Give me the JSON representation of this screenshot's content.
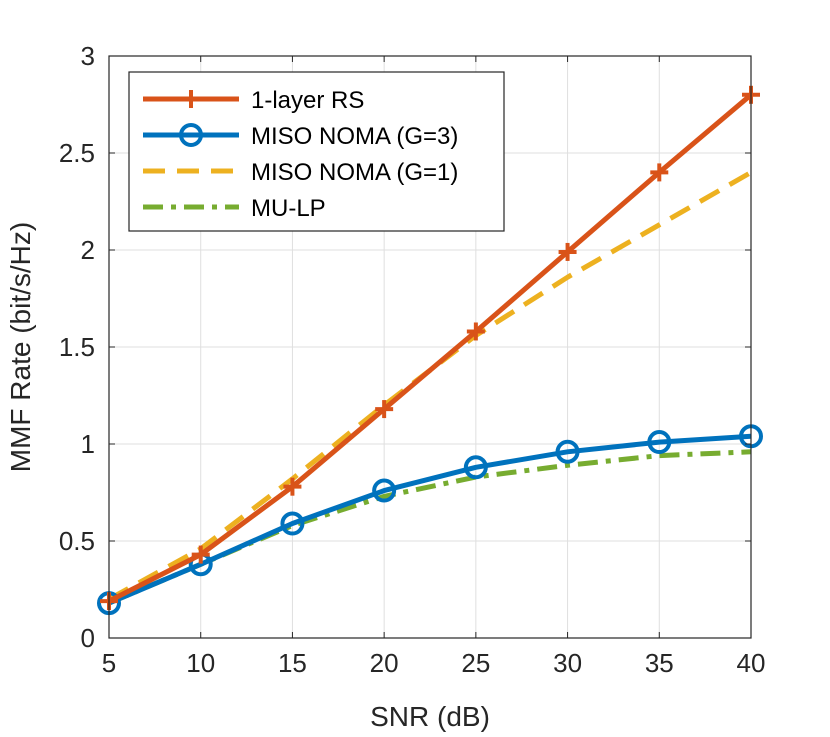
{
  "chart_data": {
    "type": "line",
    "xlabel": "SNR (dB)",
    "ylabel": "MMF Rate (bit/s/Hz)",
    "xlim": [
      5,
      40
    ],
    "ylim": [
      0,
      3
    ],
    "xticks": [
      5,
      10,
      15,
      20,
      25,
      30,
      35,
      40
    ],
    "yticks": [
      0,
      0.5,
      1,
      1.5,
      2,
      2.5,
      3
    ],
    "ytick_labels": [
      "0",
      "0.5",
      "1",
      "1.5",
      "2",
      "2.5",
      "3"
    ],
    "grid": true,
    "legend_position": "top-left",
    "x": [
      5,
      10,
      15,
      20,
      25,
      30,
      35,
      40
    ],
    "series": [
      {
        "name": "1-layer RS",
        "values": [
          0.19,
          0.43,
          0.78,
          1.18,
          1.58,
          1.99,
          2.4,
          2.8
        ],
        "color": "#D95319",
        "style": "solid",
        "marker": "plus"
      },
      {
        "name": "MISO NOMA (G=3)",
        "values": [
          0.18,
          0.38,
          0.59,
          0.76,
          0.88,
          0.96,
          1.01,
          1.04
        ],
        "color": "#0072BD",
        "style": "solid",
        "marker": "circle"
      },
      {
        "name": "MISO NOMA (G=1)",
        "values": [
          0.2,
          0.46,
          0.82,
          1.2,
          1.56,
          1.86,
          2.13,
          2.4
        ],
        "color": "#EDB120",
        "style": "dashed",
        "marker": "none"
      },
      {
        "name": "MU-LP",
        "values": [
          0.18,
          0.38,
          0.58,
          0.73,
          0.83,
          0.89,
          0.94,
          0.96
        ],
        "color": "#77AC30",
        "style": "dashdot",
        "marker": "none"
      }
    ]
  }
}
